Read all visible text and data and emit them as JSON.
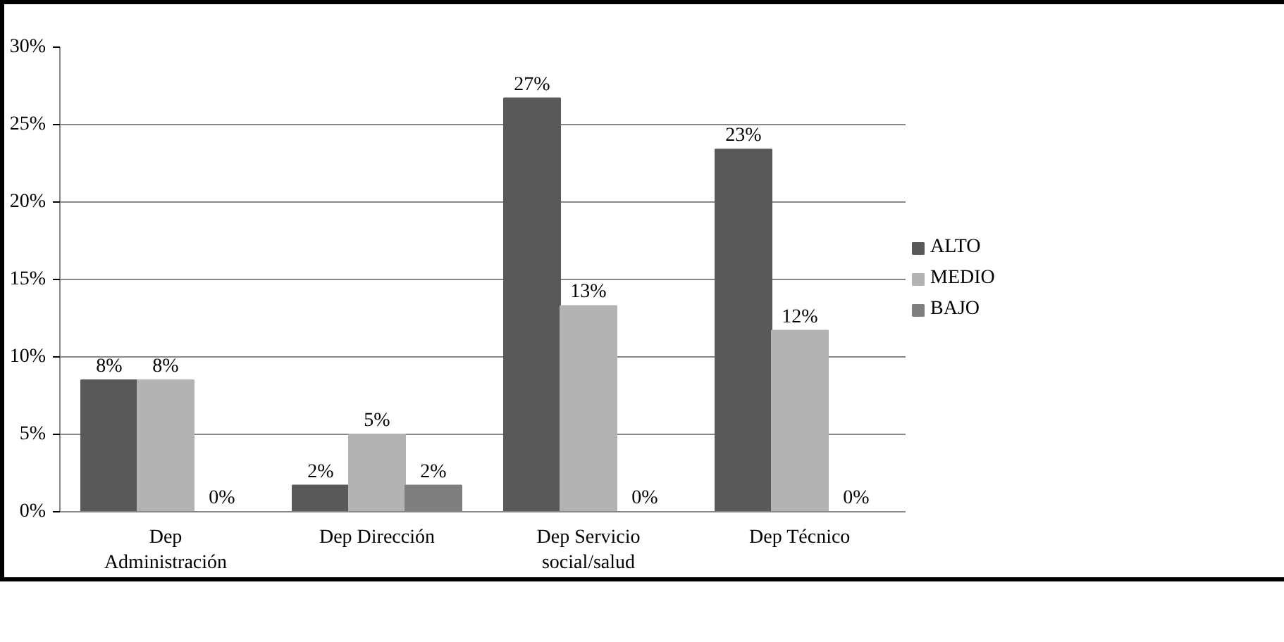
{
  "chart_data": {
    "type": "bar",
    "categories": [
      "Dep Administración",
      "Dep Dirección",
      "Dep Servicio social/salud",
      "Dep Técnico"
    ],
    "series": [
      {
        "name": "ALTO",
        "color": "#595959",
        "values": [
          8.5,
          1.7,
          26.7,
          23.4
        ],
        "value_labels": [
          "8%",
          "2%",
          "27%",
          "23%"
        ]
      },
      {
        "name": "MEDIO",
        "color": "#b3b3b3",
        "values": [
          8.5,
          5.0,
          13.3,
          11.7
        ],
        "value_labels": [
          "8%",
          "5%",
          "13%",
          "12%"
        ]
      },
      {
        "name": "BAJO",
        "color": "#7f7f7f",
        "values": [
          0,
          1.7,
          0,
          0
        ],
        "value_labels": [
          "0%",
          "2%",
          "0%",
          "0%"
        ]
      }
    ],
    "ylim": [
      0,
      30
    ],
    "yticks": [
      {
        "value": 0,
        "label": "0%"
      },
      {
        "value": 5,
        "label": "5%"
      },
      {
        "value": 10,
        "label": "10%"
      },
      {
        "value": 15,
        "label": "15%"
      },
      {
        "value": 20,
        "label": "20%"
      },
      {
        "value": 25,
        "label": "25%"
      },
      {
        "value": 30,
        "label": "30%"
      }
    ],
    "grid": "y",
    "legend": "right"
  }
}
